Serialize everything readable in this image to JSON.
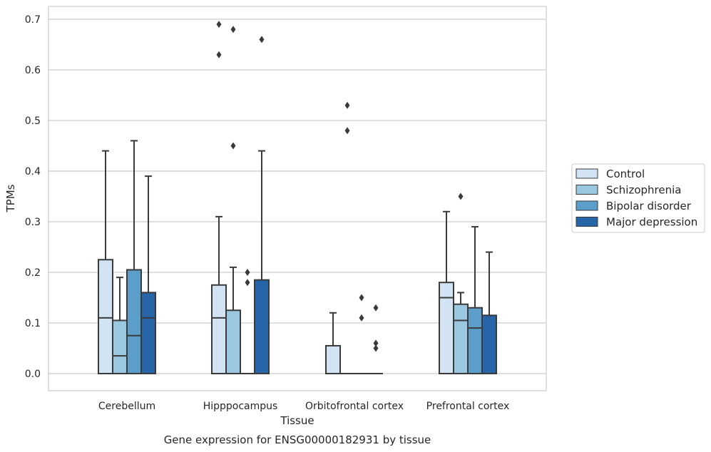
{
  "chart_data": {
    "type": "box",
    "xlabel": "Tissue",
    "ylabel": "TPMs",
    "caption": "Gene expression for ENSG00000182931 by tissue",
    "ylim": [
      -0.034,
      0.725
    ],
    "yticks": [
      "0.0",
      "0.1",
      "0.2",
      "0.3",
      "0.4",
      "0.5",
      "0.6",
      "0.7"
    ],
    "grid": "horizontal",
    "legend_position": "right",
    "categories": [
      "Cerebellum",
      "Hipppocampus",
      "Orbitofrontal cortex",
      "Prefrontal cortex"
    ],
    "series": [
      {
        "name": "Control",
        "color": "#d2e3f3",
        "boxes": [
          {
            "whisker_low": 0.0,
            "q1": 0.0,
            "median": 0.11,
            "q3": 0.225,
            "whisker_high": 0.44,
            "outliers": []
          },
          {
            "whisker_low": 0.0,
            "q1": 0.0,
            "median": 0.11,
            "q3": 0.175,
            "whisker_high": 0.31,
            "outliers": [
              0.63,
              0.69
            ]
          },
          {
            "whisker_low": 0.0,
            "q1": 0.0,
            "median": 0.0,
            "q3": 0.055,
            "whisker_high": 0.12,
            "outliers": []
          },
          {
            "whisker_low": 0.0,
            "q1": 0.0,
            "median": 0.15,
            "q3": 0.18,
            "whisker_high": 0.32,
            "outliers": []
          }
        ]
      },
      {
        "name": "Schizophrenia",
        "color": "#9ac8e0",
        "boxes": [
          {
            "whisker_low": 0.0,
            "q1": 0.0,
            "median": 0.035,
            "q3": 0.105,
            "whisker_high": 0.19,
            "outliers": []
          },
          {
            "whisker_low": 0.0,
            "q1": 0.0,
            "median": 0.0,
            "q3": 0.125,
            "whisker_high": 0.21,
            "outliers": [
              0.45,
              0.68
            ]
          },
          {
            "whisker_low": 0.0,
            "q1": 0.0,
            "median": 0.0,
            "q3": 0.0,
            "whisker_high": 0.0,
            "outliers": [
              0.48,
              0.53
            ]
          },
          {
            "whisker_low": 0.0,
            "q1": 0.0,
            "median": 0.105,
            "q3": 0.137,
            "whisker_high": 0.16,
            "outliers": [
              0.35
            ]
          }
        ]
      },
      {
        "name": "Bipolar disorder",
        "color": "#5a9ec9",
        "boxes": [
          {
            "whisker_low": 0.0,
            "q1": 0.0,
            "median": 0.075,
            "q3": 0.205,
            "whisker_high": 0.46,
            "outliers": []
          },
          {
            "whisker_low": 0.0,
            "q1": 0.0,
            "median": 0.0,
            "q3": 0.0,
            "whisker_high": 0.0,
            "outliers": [
              0.18,
              0.2
            ]
          },
          {
            "whisker_low": 0.0,
            "q1": 0.0,
            "median": 0.0,
            "q3": 0.0,
            "whisker_high": 0.0,
            "outliers": [
              0.11,
              0.15
            ]
          },
          {
            "whisker_low": 0.0,
            "q1": 0.0,
            "median": 0.09,
            "q3": 0.13,
            "whisker_high": 0.29,
            "outliers": []
          }
        ]
      },
      {
        "name": "Major depression",
        "color": "#2666a8",
        "boxes": [
          {
            "whisker_low": 0.0,
            "q1": 0.0,
            "median": 0.11,
            "q3": 0.16,
            "whisker_high": 0.39,
            "outliers": []
          },
          {
            "whisker_low": 0.0,
            "q1": 0.0,
            "median": 0.0,
            "q3": 0.185,
            "whisker_high": 0.44,
            "outliers": [
              0.66
            ]
          },
          {
            "whisker_low": 0.0,
            "q1": 0.0,
            "median": 0.0,
            "q3": 0.0,
            "whisker_high": 0.0,
            "outliers": [
              0.05,
              0.06,
              0.13
            ]
          },
          {
            "whisker_low": 0.0,
            "q1": 0.0,
            "median": 0.0,
            "q3": 0.115,
            "whisker_high": 0.24,
            "outliers": []
          }
        ]
      }
    ]
  }
}
